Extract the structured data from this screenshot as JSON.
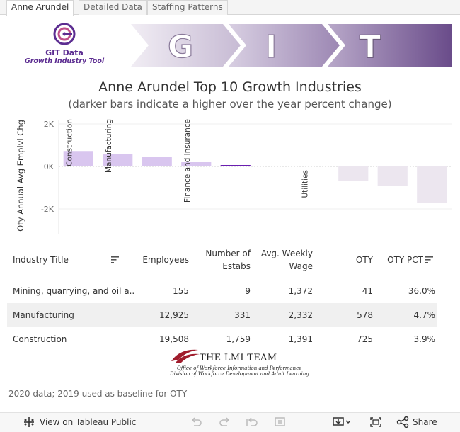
{
  "tabs": [
    {
      "label": "Anne Arundel",
      "active": true
    },
    {
      "label": "Detailed Data",
      "active": false
    },
    {
      "label": "Staffing Patterns",
      "active": false
    }
  ],
  "logo": {
    "title": "GIT Data",
    "subtitle": "Growth Industry Tool"
  },
  "banner_letters": [
    "G",
    "I",
    "T"
  ],
  "colors": {
    "accent": "#5c2d91",
    "bar_light": "#d9c6ef",
    "bar_dark": "#6a1fb0",
    "bar_neg": "#ece6ef"
  },
  "chart_data": {
    "type": "bar",
    "title": "Anne Arundel Top 10 Growth Industries",
    "subtitle": "(darker bars indicate a higher over the year percent change)",
    "ylabel": "Oty Annual Avg Emplvl Chg",
    "ylim": [
      -3000,
      2000
    ],
    "yticks": [
      "2K",
      "0K",
      "-2K"
    ],
    "category_labels": [
      "Construction",
      "Manufacturing",
      "",
      "Finance and insurance",
      "",
      "",
      "Utilities",
      "",
      "",
      ""
    ],
    "values": [
      725,
      578,
      450,
      200,
      41,
      0,
      0,
      -700,
      -900,
      -1720
    ]
  },
  "table": {
    "headers": {
      "industry": "Industry Title",
      "employees": "Employees",
      "estabs_1": "Number of",
      "estabs_2": "Estabs",
      "wage_1": "Avg. Weekly",
      "wage_2": "Wage",
      "oty": "OTY",
      "oty_pct": "OTY PCT"
    },
    "rows": [
      {
        "industry": "Mining, quarrying, and oil a..",
        "employees": "155",
        "estabs": "9",
        "wage": "1,372",
        "oty": "41",
        "oty_pct": "36.0%"
      },
      {
        "industry": "Manufacturing",
        "employees": "12,925",
        "estabs": "331",
        "wage": "2,332",
        "oty": "578",
        "oty_pct": "4.7%"
      },
      {
        "industry": "Construction",
        "employees": "19,508",
        "estabs": "1,759",
        "wage": "1,391",
        "oty": "725",
        "oty_pct": "3.9%"
      }
    ]
  },
  "lmi": {
    "name": "THE LMI TEAM",
    "line1": "Office of Workforce Information and Performance",
    "line2": "Division of Workforce Development and Adult Learning"
  },
  "footnote": "2020 data; 2019 used as baseline for OTY",
  "toolbar": {
    "view_label": "View on Tableau Public",
    "share_label": "Share"
  }
}
